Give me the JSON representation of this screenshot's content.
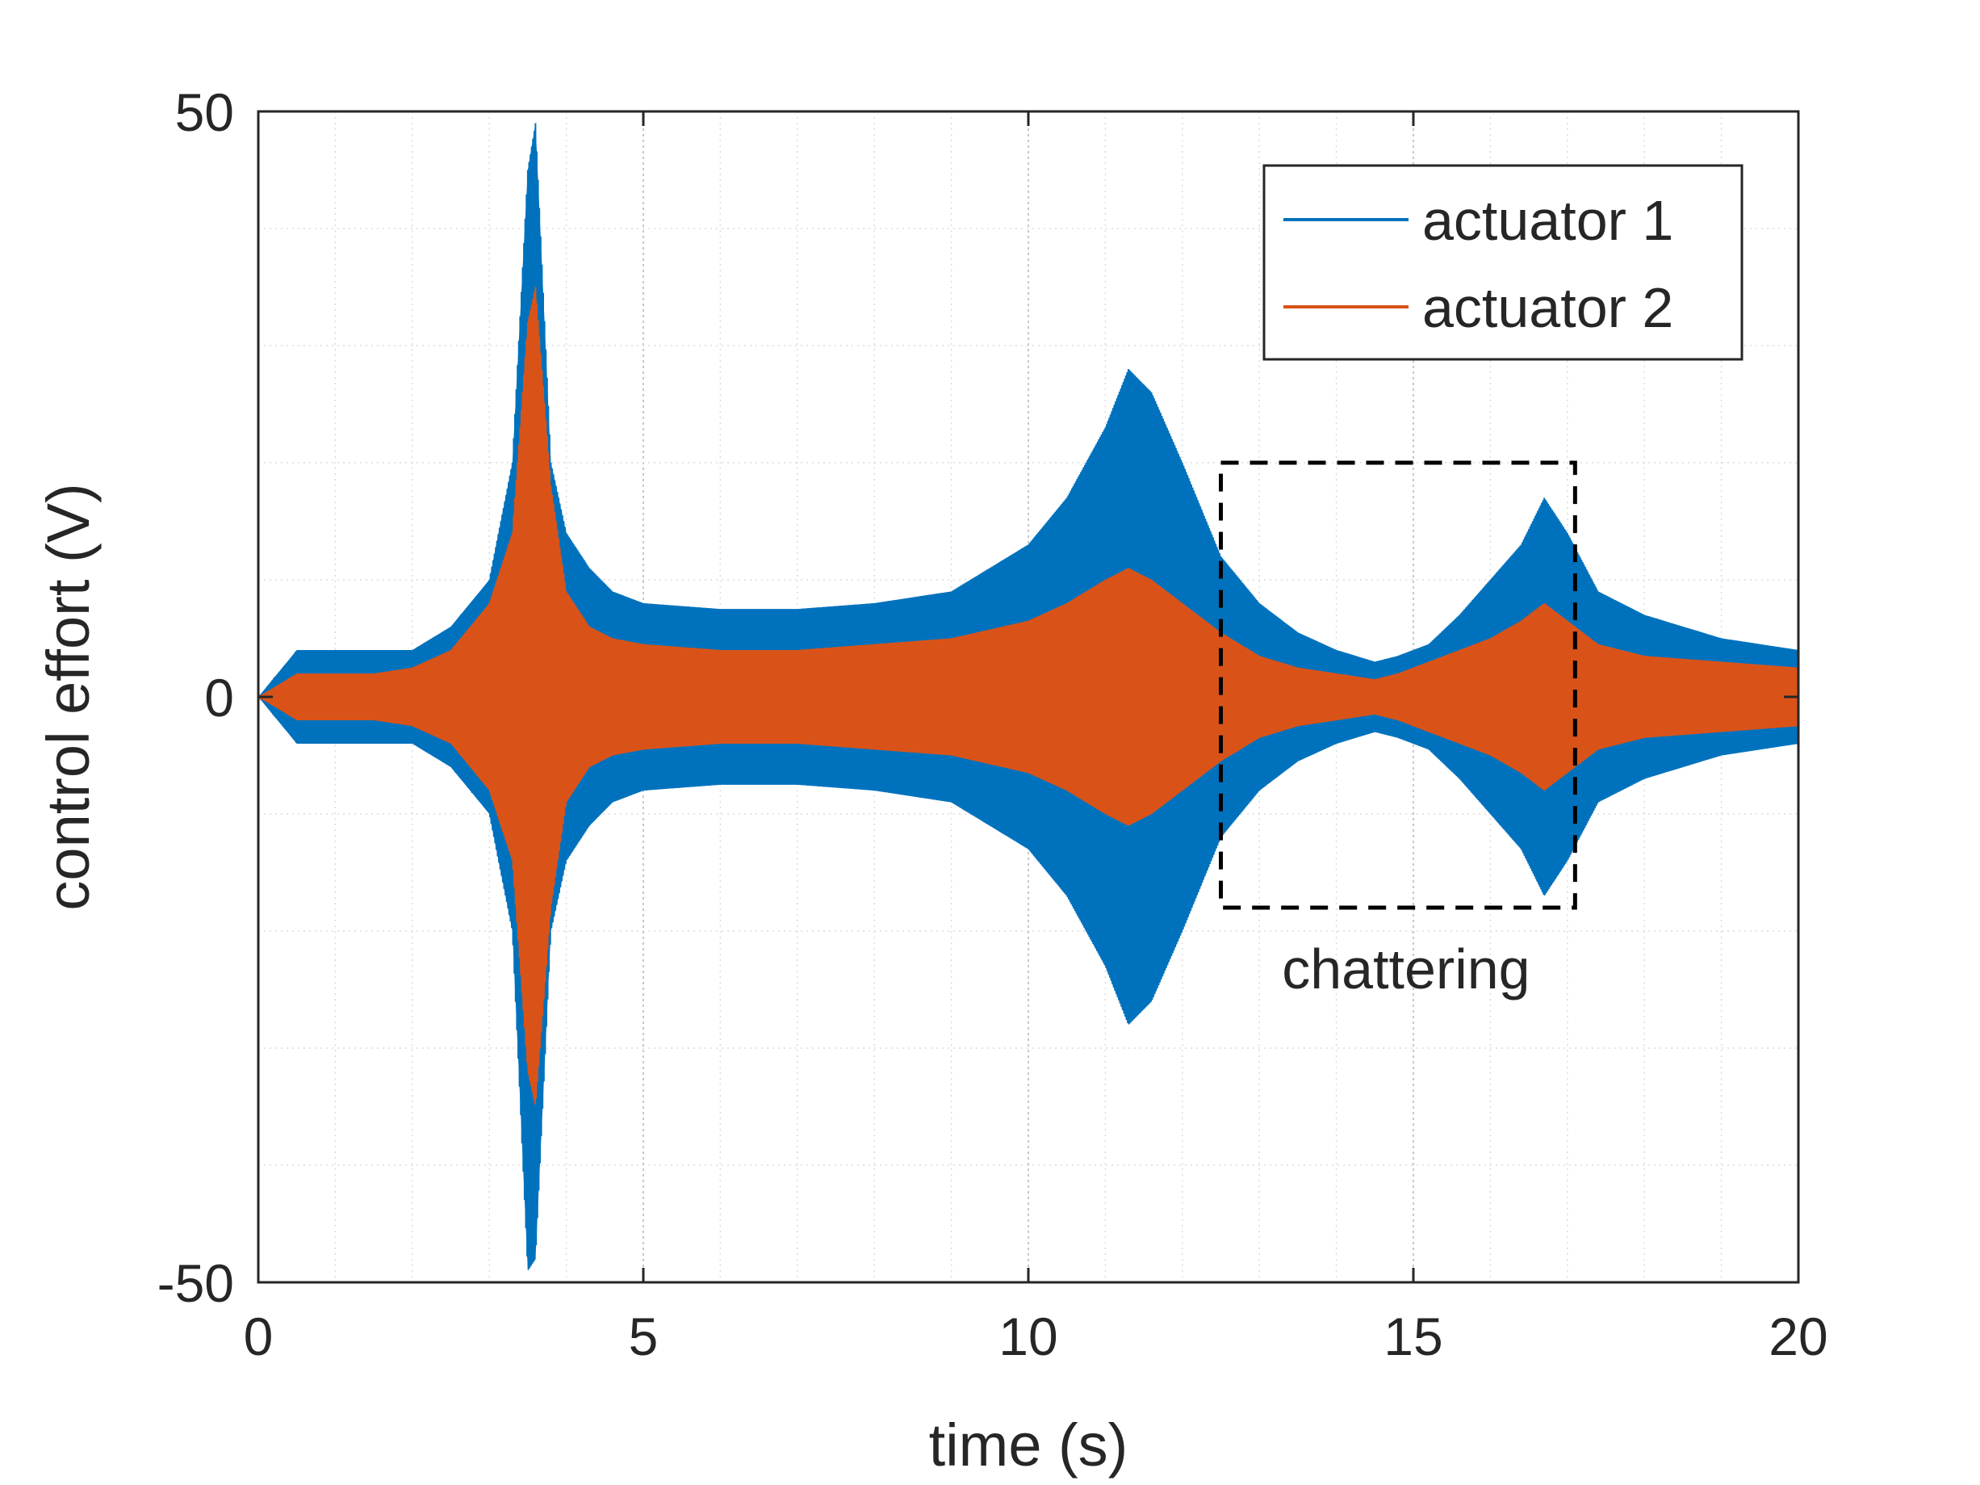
{
  "chart_data": {
    "type": "line",
    "xlabel": "time (s)",
    "ylabel": "control effort (V)",
    "xlim": [
      0,
      20
    ],
    "ylim": [
      -50,
      50
    ],
    "xticks": [
      0,
      5,
      10,
      15,
      20
    ],
    "yticks": [
      -50,
      0,
      50
    ],
    "xtick_labels": [
      "0",
      "5",
      "10",
      "15",
      "20"
    ],
    "ytick_labels": [
      "-50",
      "0",
      "50"
    ],
    "grid": true,
    "minor_grid": true,
    "legend_position": "top-right",
    "series": [
      {
        "name": "actuator 1",
        "color": "#0072BD",
        "style": "dense oscillation (envelope shown)",
        "envelope": {
          "t": [
            0,
            0.5,
            1,
            1.5,
            2,
            2.5,
            3,
            3.3,
            3.5,
            3.6,
            3.8,
            4.0,
            4.3,
            4.6,
            5,
            6,
            7,
            8,
            9,
            10,
            10.5,
            11,
            11.3,
            11.6,
            12,
            12.5,
            13,
            13.5,
            14,
            14.5,
            14.8,
            15.2,
            15.6,
            16,
            16.4,
            16.7,
            17,
            17.4,
            18,
            19,
            20
          ],
          "upper": [
            0,
            4,
            4,
            4,
            4,
            6,
            10,
            20,
            45,
            49,
            20,
            14,
            11,
            9,
            8,
            7.5,
            7.5,
            8,
            9,
            13,
            17,
            23,
            28,
            26,
            20,
            12,
            8,
            5.5,
            4,
            3,
            3.5,
            4.5,
            7,
            10,
            13,
            17,
            14,
            9,
            7,
            5,
            4
          ],
          "lower": [
            0,
            -4,
            -4,
            -4,
            -4,
            -6,
            -10,
            -20,
            -49,
            -48,
            -20,
            -14,
            -11,
            -9,
            -8,
            -7.5,
            -7.5,
            -8,
            -9,
            -13,
            -17,
            -23,
            -28,
            -26,
            -20,
            -12,
            -8,
            -5.5,
            -4,
            -3,
            -3.5,
            -4.5,
            -7,
            -10,
            -13,
            -17,
            -14,
            -9,
            -7,
            -5,
            -4
          ]
        }
      },
      {
        "name": "actuator 2",
        "color": "#D95319",
        "style": "dense oscillation (envelope shown)",
        "envelope": {
          "t": [
            0,
            0.5,
            1,
            1.5,
            2,
            2.5,
            3,
            3.3,
            3.5,
            3.6,
            3.8,
            4.0,
            4.3,
            4.6,
            5,
            6,
            7,
            8,
            9,
            10,
            10.5,
            11,
            11.3,
            11.6,
            12,
            12.5,
            13,
            13.5,
            14,
            14.5,
            14.8,
            15.2,
            15.6,
            16,
            16.4,
            16.7,
            17,
            17.4,
            18,
            19,
            20
          ],
          "upper": [
            0,
            2,
            2,
            2,
            2.5,
            4,
            8,
            14,
            32,
            35,
            18,
            9,
            6,
            5,
            4.5,
            4,
            4,
            4.5,
            5,
            6.5,
            8,
            10,
            11,
            10,
            8,
            5.5,
            3.5,
            2.5,
            2,
            1.5,
            2,
            3,
            4,
            5,
            6.5,
            8,
            6.5,
            4.5,
            3.5,
            3,
            2.5
          ],
          "lower": [
            0,
            -2,
            -2,
            -2,
            -2.5,
            -4,
            -8,
            -14,
            -32,
            -35,
            -18,
            -9,
            -6,
            -5,
            -4.5,
            -4,
            -4,
            -4.5,
            -5,
            -6.5,
            -8,
            -10,
            -11,
            -10,
            -8,
            -5.5,
            -3.5,
            -2.5,
            -2,
            -1.5,
            -2,
            -3,
            -4,
            -5,
            -6.5,
            -8,
            -6.5,
            -4.5,
            -3.5,
            -3,
            -2.5
          ]
        }
      }
    ],
    "annotations": [
      {
        "text": "chattering",
        "box_x": [
          12.5,
          17.1
        ],
        "box_y": [
          -18,
          20
        ],
        "style": "dashed black rectangle"
      }
    ]
  }
}
